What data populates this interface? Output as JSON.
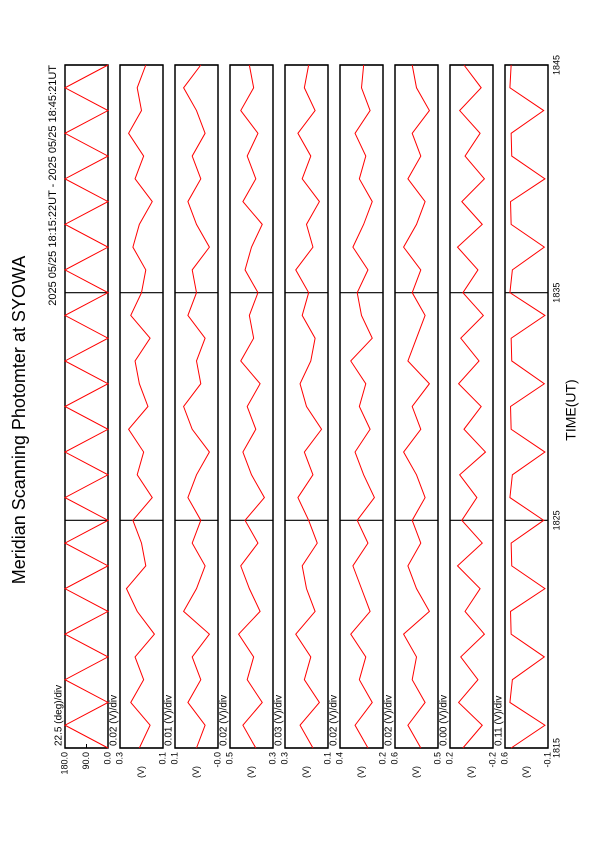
{
  "chart_data": [
    {
      "type": "line",
      "title": "Meridian Scanning Photomter at SYOWA",
      "subtitle": "2025 05/25 18:15:22UT - 2025 05/25 18:45:21UT",
      "xlabel": "TIME(UT)",
      "division": "22.5 (deg)/div",
      "color": "#ff0000",
      "x": [
        1815,
        1816,
        1817,
        1818,
        1819,
        1820,
        1821,
        1822,
        1823,
        1824,
        1825,
        1826,
        1827,
        1828,
        1829,
        1830,
        1831,
        1832,
        1833,
        1834,
        1835,
        1836,
        1837,
        1838,
        1839,
        1840,
        1841,
        1842,
        1843,
        1844,
        1845
      ],
      "values": [
        0,
        180,
        0,
        180,
        0,
        180,
        0,
        180,
        0,
        180,
        0,
        180,
        0,
        180,
        0,
        180,
        0,
        180,
        0,
        180,
        0,
        180,
        0,
        180,
        0,
        180,
        0,
        180,
        0,
        180,
        0
      ],
      "xlim": [
        1815,
        1845
      ],
      "xticks": [
        1815,
        1825,
        1835,
        1845
      ],
      "ylim": [
        0,
        180
      ],
      "yticks": [
        {
          "value": 180,
          "label": "180.0"
        },
        {
          "value": 90,
          "label": "90.0"
        },
        {
          "value": 0,
          "label": "0.0"
        }
      ]
    },
    {
      "type": "line",
      "division": "0.02 (V)/div",
      "ylabel": "(V)",
      "color": "#ff0000",
      "x": [
        1815,
        1816,
        1817,
        1818,
        1819,
        1820,
        1821,
        1822,
        1823,
        1824,
        1825,
        1826,
        1827,
        1828,
        1829,
        1830,
        1831,
        1832,
        1833,
        1834,
        1835,
        1836,
        1837,
        1838,
        1839,
        1840,
        1841,
        1842,
        1843,
        1844,
        1845
      ],
      "values": [
        0.21,
        0.16,
        0.25,
        0.19,
        0.23,
        0.14,
        0.22,
        0.27,
        0.18,
        0.2,
        0.24,
        0.15,
        0.22,
        0.19,
        0.26,
        0.17,
        0.21,
        0.23,
        0.16,
        0.25,
        0.2,
        0.18,
        0.24,
        0.21,
        0.15,
        0.23,
        0.19,
        0.26,
        0.2,
        0.22,
        0.18
      ],
      "xlim": [
        1815,
        1845
      ],
      "xticks": [
        1815,
        1825,
        1835,
        1845
      ],
      "ylim": [
        0.1,
        0.3
      ],
      "yticks": [
        0.3,
        0.1
      ]
    },
    {
      "type": "line",
      "division": "0.01 (V)/div",
      "ylabel": "(V)",
      "color": "#ff0000",
      "x": [
        1815,
        1816,
        1817,
        1818,
        1819,
        1820,
        1821,
        1822,
        1823,
        1824,
        1825,
        1826,
        1827,
        1828,
        1829,
        1830,
        1831,
        1832,
        1833,
        1834,
        1835,
        1836,
        1837,
        1838,
        1839,
        1840,
        1841,
        1842,
        1843,
        1844,
        1845
      ],
      "values": [
        0.05,
        0.03,
        0.07,
        0.04,
        0.06,
        0.02,
        0.08,
        0.05,
        0.03,
        0.06,
        0.04,
        0.07,
        0.05,
        0.02,
        0.06,
        0.08,
        0.04,
        0.05,
        0.03,
        0.07,
        0.05,
        0.06,
        0.02,
        0.05,
        0.07,
        0.04,
        0.06,
        0.03,
        0.05,
        0.08,
        0.04
      ],
      "xlim": [
        1815,
        1845
      ],
      "xticks": [
        1815,
        1825,
        1835,
        1845
      ],
      "ylim": [
        0,
        0.1
      ],
      "yticks": [
        0.1,
        {
          "value": 0,
          "label": "-0.0"
        }
      ]
    },
    {
      "type": "line",
      "division": "0.02 (V)/div",
      "ylabel": "(V)",
      "color": "#ff0000",
      "x": [
        1815,
        1816,
        1817,
        1818,
        1819,
        1820,
        1821,
        1822,
        1823,
        1824,
        1825,
        1826,
        1827,
        1828,
        1829,
        1830,
        1831,
        1832,
        1833,
        1834,
        1835,
        1836,
        1837,
        1838,
        1839,
        1840,
        1841,
        1842,
        1843,
        1844,
        1845
      ],
      "values": [
        0.38,
        0.44,
        0.35,
        0.42,
        0.39,
        0.46,
        0.36,
        0.41,
        0.45,
        0.37,
        0.43,
        0.34,
        0.4,
        0.44,
        0.38,
        0.42,
        0.36,
        0.45,
        0.39,
        0.41,
        0.37,
        0.43,
        0.4,
        0.35,
        0.44,
        0.38,
        0.42,
        0.37,
        0.45,
        0.39,
        0.41
      ],
      "xlim": [
        1815,
        1845
      ],
      "xticks": [
        1815,
        1825,
        1835,
        1845
      ],
      "ylim": [
        0.3,
        0.5
      ],
      "yticks": [
        0.5,
        0.3
      ]
    },
    {
      "type": "line",
      "division": "0.03 (V)/div",
      "ylabel": "(V)",
      "color": "#ff0000",
      "x": [
        1815,
        1816,
        1817,
        1818,
        1819,
        1820,
        1821,
        1822,
        1823,
        1824,
        1825,
        1826,
        1827,
        1828,
        1829,
        1830,
        1831,
        1832,
        1833,
        1834,
        1835,
        1836,
        1837,
        1838,
        1839,
        1840,
        1841,
        1842,
        1843,
        1844,
        1845
      ],
      "values": [
        0.17,
        0.23,
        0.14,
        0.21,
        0.18,
        0.25,
        0.16,
        0.2,
        0.22,
        0.15,
        0.19,
        0.24,
        0.17,
        0.21,
        0.13,
        0.2,
        0.23,
        0.18,
        0.16,
        0.22,
        0.19,
        0.25,
        0.17,
        0.2,
        0.14,
        0.22,
        0.18,
        0.24,
        0.16,
        0.21,
        0.19
      ],
      "xlim": [
        1815,
        1845
      ],
      "xticks": [
        1815,
        1825,
        1835,
        1845
      ],
      "ylim": [
        0.1,
        0.3
      ],
      "yticks": [
        0.3,
        0.1
      ]
    },
    {
      "type": "line",
      "division": "0.02 (V)/div",
      "ylabel": "(V)",
      "color": "#ff0000",
      "x": [
        1815,
        1816,
        1817,
        1818,
        1819,
        1820,
        1821,
        1822,
        1823,
        1824,
        1825,
        1826,
        1827,
        1828,
        1829,
        1830,
        1831,
        1832,
        1833,
        1834,
        1835,
        1836,
        1837,
        1838,
        1839,
        1840,
        1841,
        1842,
        1843,
        1844,
        1845
      ],
      "values": [
        0.27,
        0.33,
        0.25,
        0.31,
        0.28,
        0.35,
        0.26,
        0.3,
        0.34,
        0.27,
        0.32,
        0.24,
        0.29,
        0.33,
        0.26,
        0.31,
        0.28,
        0.35,
        0.25,
        0.3,
        0.32,
        0.27,
        0.34,
        0.29,
        0.25,
        0.31,
        0.28,
        0.33,
        0.26,
        0.3,
        0.29
      ],
      "xlim": [
        1815,
        1845
      ],
      "xticks": [
        1815,
        1825,
        1835,
        1845
      ],
      "ylim": [
        0.2,
        0.4
      ],
      "yticks": [
        0.4,
        0.2
      ]
    },
    {
      "type": "line",
      "division": "0.02 (V)/div",
      "ylabel": "(V)",
      "color": "#ff0000",
      "x": [
        1815,
        1816,
        1817,
        1818,
        1819,
        1820,
        1821,
        1822,
        1823,
        1824,
        1825,
        1826,
        1827,
        1828,
        1829,
        1830,
        1831,
        1832,
        1833,
        1834,
        1835,
        1836,
        1837,
        1838,
        1839,
        1840,
        1841,
        1842,
        1843,
        1844,
        1845
      ],
      "values": [
        0.54,
        0.57,
        0.53,
        0.56,
        0.55,
        0.58,
        0.52,
        0.55,
        0.57,
        0.54,
        0.56,
        0.53,
        0.55,
        0.58,
        0.54,
        0.56,
        0.52,
        0.57,
        0.55,
        0.53,
        0.56,
        0.54,
        0.58,
        0.55,
        0.53,
        0.57,
        0.54,
        0.56,
        0.52,
        0.55,
        0.56
      ],
      "xlim": [
        1815,
        1845
      ],
      "xticks": [
        1815,
        1825,
        1835,
        1845
      ],
      "ylim": [
        0.5,
        0.6
      ],
      "yticks": [
        0.6,
        0.5
      ]
    },
    {
      "type": "line",
      "division": "0.00 (V)/div",
      "ylabel": "(V)",
      "color": "#ff0000",
      "x": [
        1815,
        1816,
        1817,
        1818,
        1819,
        1820,
        1821,
        1822,
        1823,
        1824,
        1825,
        1826,
        1827,
        1828,
        1829,
        1830,
        1831,
        1832,
        1833,
        1834,
        1835,
        1836,
        1837,
        1838,
        1839,
        1840,
        1841,
        1842,
        1843,
        1844,
        1845
      ],
      "values": [
        0.08,
        -0.1,
        0.12,
        -0.06,
        0.1,
        -0.12,
        0.06,
        -0.08,
        0.13,
        -0.1,
        0.09,
        -0.05,
        0.11,
        -0.13,
        0.07,
        -0.09,
        0.12,
        -0.07,
        0.1,
        -0.11,
        0.08,
        -0.06,
        0.13,
        -0.1,
        0.09,
        -0.12,
        0.06,
        -0.08,
        0.11,
        -0.09,
        0.07
      ],
      "xlim": [
        1815,
        1845
      ],
      "xticks": [
        1815,
        1825,
        1835,
        1845
      ],
      "ylim": [
        -0.2,
        0.2
      ],
      "yticks": [
        0.2,
        -0.2
      ]
    },
    {
      "type": "line",
      "division": "0.11 (V)/div",
      "ylabel": "(V)",
      "color": "#ff0000",
      "x": [
        1815,
        1816,
        1817,
        1818,
        1819,
        1820,
        1821,
        1822,
        1823,
        1824,
        1825,
        1826,
        1827,
        1828,
        1829,
        1830,
        1831,
        1832,
        1833,
        1834,
        1835,
        1836,
        1837,
        1838,
        1839,
        1840,
        1841,
        1842,
        1843,
        1844,
        1845
      ],
      "values": [
        0.5,
        -0.05,
        0.52,
        0.48,
        -0.04,
        0.5,
        0.51,
        -0.05,
        0.49,
        0.5,
        -0.03,
        0.52,
        0.48,
        -0.05,
        0.5,
        0.51,
        -0.04,
        0.49,
        0.5,
        -0.05,
        0.52,
        0.48,
        -0.04,
        0.5,
        0.51,
        -0.05,
        0.49,
        0.5,
        -0.03,
        0.52,
        0.5
      ],
      "xlim": [
        1815,
        1845
      ],
      "xticks": [
        1815,
        1825,
        1835,
        1845
      ],
      "ylim": [
        -0.1,
        0.6
      ],
      "yticks": [
        0.6,
        -0.1
      ]
    }
  ]
}
